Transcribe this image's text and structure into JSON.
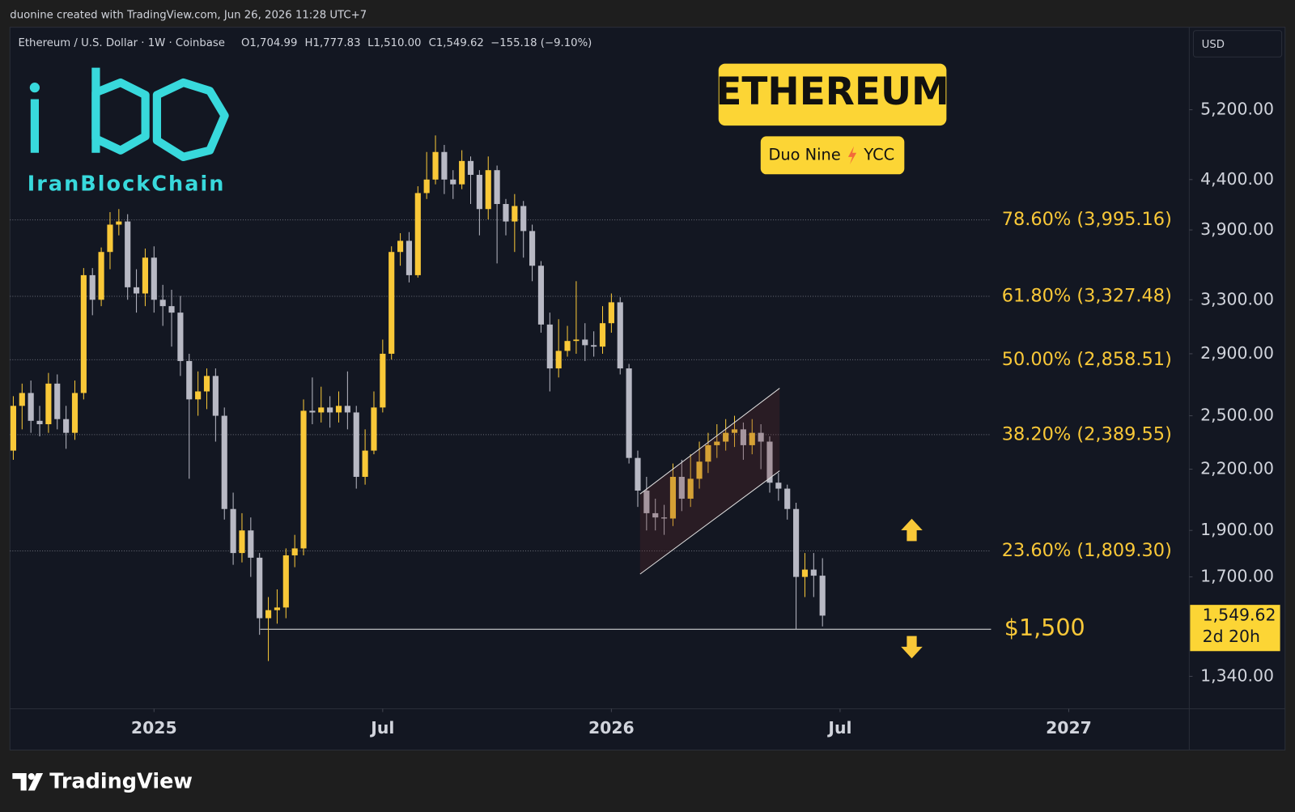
{
  "header": {
    "created": "duonine created with TradingView.com, Jun 26, 2026 11:28 UTC+7"
  },
  "watermark": {
    "logo_text": "IranBlockChain"
  },
  "footer": {
    "brand": "TradingView"
  },
  "chart_data": {
    "type": "candlestick",
    "symbol": "Ethereum / U.S. Dollar · 1W · Coinbase",
    "ohlc_legend": [
      "O1,704.99",
      "H1,777.83",
      "L1,510.00",
      "C1,549.62",
      "−155.18 (−9.10%)"
    ],
    "currency": "USD",
    "title": "ETHEREUM",
    "subtitle": [
      "Duo Nine",
      "YCC"
    ],
    "log_scale": true,
    "grid": false,
    "up_color": "#f9c838",
    "down_color": "#b8b9c4",
    "xlim": [
      -0.38,
      133.7
    ],
    "xticks": [
      {
        "value": 16,
        "label": "2025"
      },
      {
        "value": 42,
        "label": "Jul"
      },
      {
        "value": 68,
        "label": "2026"
      },
      {
        "value": 94,
        "label": "Jul"
      },
      {
        "value": 120,
        "label": "2027"
      }
    ],
    "ylim": [
      1240,
      6310
    ],
    "yticks": [
      {
        "value": 1340,
        "label": "1,340.00"
      },
      {
        "value": 1700,
        "label": "1,700.00"
      },
      {
        "value": 1900,
        "label": "1,900.00"
      },
      {
        "value": 2200,
        "label": "2,200.00"
      },
      {
        "value": 2500,
        "label": "2,500.00"
      },
      {
        "value": 2900,
        "label": "2,900.00"
      },
      {
        "value": 3300,
        "label": "3,300.00"
      },
      {
        "value": 3900,
        "label": "3,900.00"
      },
      {
        "value": 4400,
        "label": "4,400.00"
      },
      {
        "value": 5200,
        "label": "5,200.00"
      }
    ],
    "open": [
      2300,
      2560,
      2640,
      2470,
      2450,
      2700,
      2480,
      2400,
      2640,
      3500,
      3300,
      3700,
      3950,
      3980,
      3400,
      3350,
      3650,
      3300,
      3250,
      3200,
      2850,
      2600,
      2650,
      2750,
      2500,
      2000,
      1800,
      1900,
      1780,
      1540,
      1570,
      1580,
      1790,
      1820,
      2530,
      2520,
      2550,
      2520,
      2560,
      2520,
      2160,
      2300,
      2550,
      2900,
      3700,
      3800,
      3500,
      4260,
      4400,
      4700,
      4400,
      4350,
      4600,
      4450,
      4100,
      4500,
      4150,
      3980,
      4130,
      3890,
      3580,
      3110,
      2800,
      2920,
      2990,
      3000,
      2960,
      2950,
      3120,
      3280,
      2800,
      2260,
      2090,
      1980,
      1960,
      1955,
      2160,
      2050,
      2150,
      2240,
      2330,
      2350,
      2400,
      2420,
      2330,
      2400,
      2350,
      2130,
      2100,
      2000,
      1700,
      1730,
      1704.99
    ],
    "high": [
      2620,
      2700,
      2720,
      2560,
      2770,
      2760,
      2560,
      2720,
      3560,
      3560,
      3740,
      4070,
      4100,
      4050,
      3550,
      3730,
      3750,
      3420,
      3380,
      3330,
      2900,
      2780,
      2800,
      2800,
      2550,
      2080,
      1980,
      1960,
      1800,
      1620,
      1650,
      1820,
      1880,
      2600,
      2740,
      2680,
      2620,
      2650,
      2780,
      2560,
      2420,
      2650,
      3000,
      3750,
      3870,
      3880,
      4330,
      4700,
      4890,
      4780,
      4500,
      4720,
      4650,
      4500,
      4650,
      4550,
      4200,
      4250,
      4180,
      3950,
      3620,
      3200,
      3150,
      3100,
      3450,
      3120,
      3060,
      3250,
      3350,
      3320,
      2830,
      2300,
      2160,
      2050,
      2020,
      2230,
      2250,
      2280,
      2350,
      2400,
      2450,
      2480,
      2500,
      2460,
      2480,
      2450,
      2380,
      2180,
      2120,
      2030,
      1800,
      1800,
      1777.83
    ],
    "low": [
      2250,
      2420,
      2400,
      2380,
      2400,
      2420,
      2310,
      2360,
      2600,
      3180,
      3250,
      3550,
      3850,
      3300,
      3200,
      3250,
      3200,
      3100,
      2950,
      2750,
      2150,
      2500,
      2540,
      2350,
      1950,
      1750,
      1760,
      1700,
      1480,
      1390,
      1520,
      1540,
      1740,
      1790,
      2450,
      2460,
      2430,
      2460,
      2420,
      2100,
      2120,
      2280,
      2520,
      2860,
      3580,
      3440,
      3480,
      4200,
      4350,
      4250,
      4200,
      4300,
      4150,
      3850,
      4000,
      3600,
      3850,
      3700,
      3650,
      3450,
      3050,
      2650,
      2740,
      2880,
      2900,
      2850,
      2880,
      2900,
      3050,
      2760,
      2230,
      2010,
      1900,
      1900,
      1880,
      1920,
      1990,
      2010,
      2100,
      2180,
      2260,
      2300,
      2320,
      2250,
      2280,
      2200,
      2080,
      2040,
      1950,
      1500,
      1620,
      1620,
      1510
    ],
    "close": [
      2560,
      2640,
      2470,
      2450,
      2700,
      2480,
      2400,
      2640,
      3500,
      3300,
      3700,
      3950,
      3980,
      3400,
      3350,
      3650,
      3300,
      3250,
      3200,
      2850,
      2600,
      2650,
      2750,
      2500,
      2000,
      1800,
      1900,
      1780,
      1540,
      1570,
      1580,
      1790,
      1820,
      2530,
      2520,
      2550,
      2520,
      2560,
      2520,
      2160,
      2300,
      2550,
      2900,
      3700,
      3800,
      3500,
      4260,
      4400,
      4700,
      4400,
      4350,
      4600,
      4450,
      4100,
      4500,
      4150,
      3980,
      4130,
      3890,
      3580,
      3110,
      2800,
      2920,
      2990,
      3000,
      2960,
      2950,
      3120,
      3280,
      2800,
      2260,
      2090,
      1980,
      1960,
      1955,
      2160,
      2050,
      2150,
      2240,
      2330,
      2350,
      2400,
      2420,
      2330,
      2400,
      2350,
      2130,
      2100,
      2000,
      1700,
      1730,
      1704.99,
      1549.62
    ],
    "last_price_label": "1,549.62",
    "countdown": "2d 20h",
    "levels": [
      {
        "value": 3995.16,
        "label": "78.60% (3,995.16)"
      },
      {
        "value": 3327.48,
        "label": "61.80% (3,327.48)"
      },
      {
        "value": 2858.51,
        "label": "50.00% (2,858.51)"
      },
      {
        "value": 2389.55,
        "label": "38.20% (2,389.55)"
      },
      {
        "value": 1809.3,
        "label": "23.60% (1,809.30)"
      }
    ],
    "support": {
      "value": 1500,
      "label": "$1,500"
    }
  }
}
